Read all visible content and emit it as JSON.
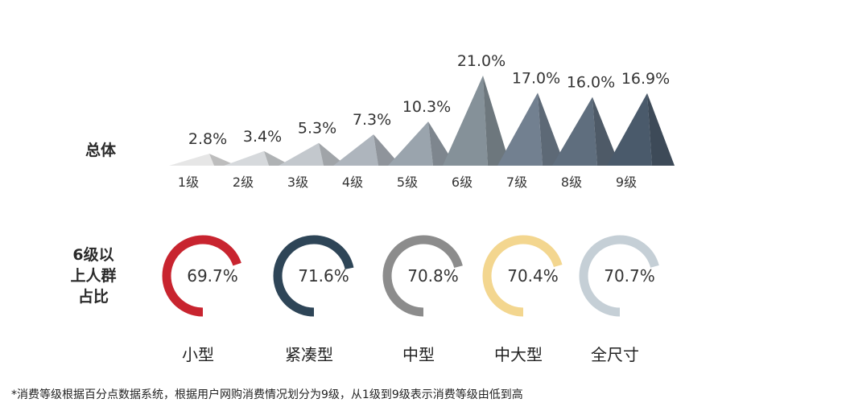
{
  "chart_data": [
    {
      "type": "area",
      "row_label": "总体",
      "categories": [
        "1级",
        "2级",
        "3级",
        "4级",
        "5级",
        "6级",
        "7级",
        "8级",
        "9级"
      ],
      "values": [
        2.8,
        3.4,
        5.3,
        7.3,
        10.3,
        21.0,
        17.0,
        16.0,
        16.9
      ],
      "value_labels": [
        "2.8%",
        "3.4%",
        "5.3%",
        "7.3%",
        "10.3%",
        "21.0%",
        "17.0%",
        "16.0%",
        "16.9%"
      ],
      "colors": [
        "#e6e6e6",
        "#d6d9dc",
        "#c3c8cd",
        "#aeb5bd",
        "#9aa4ad",
        "#859199",
        "#728090",
        "#5f6e7e",
        "#4a5a6b"
      ]
    },
    {
      "type": "pie",
      "row_label": "6级以上人群占比",
      "row_label_lines": [
        "6级以",
        "上人群",
        "占比"
      ],
      "categories": [
        "小型",
        "紧凑型",
        "中型",
        "中大型",
        "全尺寸"
      ],
      "values": [
        69.7,
        71.6,
        70.8,
        70.4,
        70.7
      ],
      "value_labels": [
        "69.7%",
        "71.6%",
        "70.8%",
        "70.4%",
        "70.7%"
      ],
      "colors": [
        "#c8242f",
        "#2e4557",
        "#8c8c8c",
        "#f3d68f",
        "#c5cfd6"
      ]
    }
  ],
  "footnote": "*消费等级根据百分点数据系统，根据用户网购消费情况划分为9级，从1级到9级表示消费等级由低到高"
}
